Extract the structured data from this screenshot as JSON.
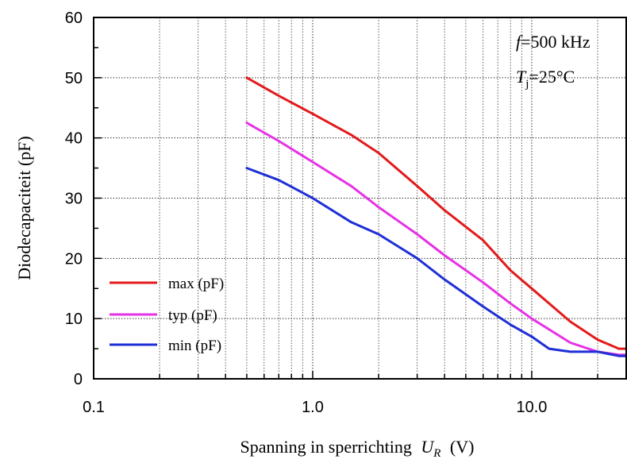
{
  "chart_data": {
    "type": "line",
    "title": "",
    "xlabel": "Spanning in sperrichting",
    "xlabel_symbol": "U",
    "xlabel_sub": "R",
    "xlabel_unit": "(V)",
    "ylabel": "Diodecapaciteit (pF)",
    "x_scale": "log",
    "xlim": [
      0.1,
      27
    ],
    "ylim": [
      0,
      60
    ],
    "x_ticks": [
      {
        "value": 0.1,
        "label": "0.1"
      },
      {
        "value": 1,
        "label": "1.0"
      },
      {
        "value": 10,
        "label": "10.0"
      }
    ],
    "y_ticks": [
      {
        "value": 0,
        "label": "0"
      },
      {
        "value": 10,
        "label": "10"
      },
      {
        "value": 20,
        "label": "20"
      },
      {
        "value": 30,
        "label": "30"
      },
      {
        "value": 40,
        "label": "40"
      },
      {
        "value": 50,
        "label": "50"
      },
      {
        "value": 60,
        "label": "60"
      }
    ],
    "grid": true,
    "legend_position": "bottom-left",
    "annotations": [
      {
        "symbol": "f",
        "sub": "",
        "text": "=500 kHz"
      },
      {
        "symbol": "T",
        "sub": "j",
        "text": "=25°C"
      }
    ],
    "series": [
      {
        "name": "max (pF)",
        "color": "#e31a1c",
        "x": [
          0.5,
          0.7,
          1.0,
          1.5,
          2.0,
          3.0,
          4.0,
          6.0,
          8.0,
          10.0,
          15.0,
          20.0,
          25.0,
          27.0
        ],
        "y": [
          50,
          47,
          44,
          40.5,
          37.5,
          32,
          28,
          23,
          18,
          15,
          9.5,
          6.5,
          5,
          5
        ]
      },
      {
        "name": "typ (pF)",
        "color": "#e632e6",
        "x": [
          0.5,
          0.7,
          1.0,
          1.5,
          2.0,
          3.0,
          4.0,
          6.0,
          8.0,
          10.0,
          15.0,
          20.0,
          25.0,
          27.0
        ],
        "y": [
          42.5,
          39.5,
          36,
          32,
          28.5,
          24,
          20.5,
          16,
          12.5,
          10,
          6,
          4.5,
          4,
          4
        ]
      },
      {
        "name": "min (pF)",
        "color": "#1f2fd6",
        "x": [
          0.5,
          0.7,
          1.0,
          1.5,
          2.0,
          3.0,
          4.0,
          6.0,
          8.0,
          10.0,
          12.0,
          15.0,
          20.0,
          25.0,
          27.0
        ],
        "y": [
          35,
          33,
          30,
          26,
          24,
          20,
          16.5,
          12,
          9,
          7,
          5,
          4.5,
          4.5,
          3.8,
          3.8
        ]
      }
    ]
  }
}
